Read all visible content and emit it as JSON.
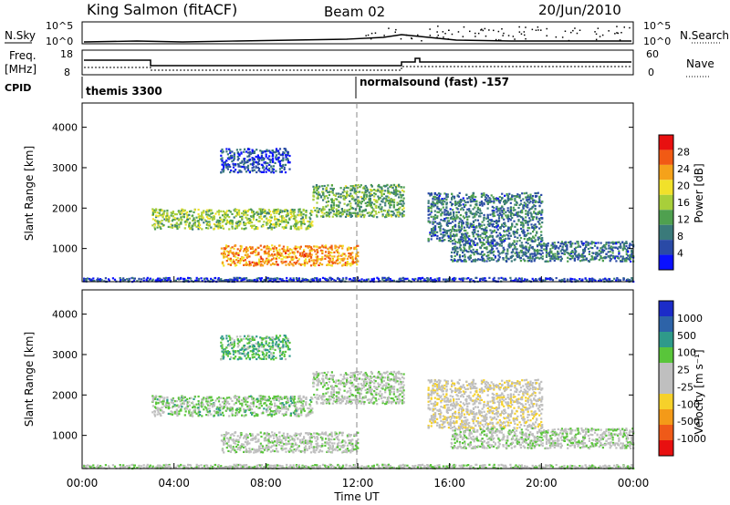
{
  "header": {
    "station": "King Salmon (fitACF)",
    "beam": "Beam 02",
    "date": "20/Jun/2010"
  },
  "noise_panel": {
    "left_label": "N.Sky",
    "right_label": "N.Search",
    "ticks": [
      "10^5",
      "10^0"
    ]
  },
  "freq_panel": {
    "left_label_1": "Freq.",
    "left_label_2": "[MHz]",
    "right_label": "Nave",
    "left_ticks": [
      "18",
      "8"
    ],
    "right_ticks": [
      "60",
      "0"
    ]
  },
  "cpid": {
    "label": "CPID",
    "mode_1": "themis 3300",
    "mode_2": "normalsound (fast) -157"
  },
  "power_panel": {
    "ylabel": "Slant Range [km]",
    "yticks": [
      "4000",
      "3000",
      "2000",
      "1000"
    ],
    "colorbar_label": "Power [dB]",
    "colorbar_ticks": [
      "28",
      "24",
      "20",
      "16",
      "12",
      "8",
      "4"
    ],
    "colors": [
      "#0a10ff",
      "#2a4aa6",
      "#3a7a7a",
      "#4fa04f",
      "#a8cf3a",
      "#f1e12a",
      "#f5a21a",
      "#f15a14",
      "#e81010"
    ]
  },
  "velocity_panel": {
    "ylabel": "Slant Range [km]",
    "yticks": [
      "4000",
      "3000",
      "2000",
      "1000"
    ],
    "colorbar_label": "Velocity [m s⁻¹]",
    "colorbar_ticks": [
      "1000",
      "500",
      "100",
      "25",
      "-25",
      "-100",
      "-500",
      "-1000"
    ],
    "colors": [
      "#1c2cc8",
      "#2d63a8",
      "#2f9a8a",
      "#59c53a",
      "#bfbfbf",
      "#bfbfbf",
      "#f6d12a",
      "#f49a18",
      "#ef5a18",
      "#e81010"
    ],
    "ground_scatter_color": "#bfbfbf"
  },
  "time_axis": {
    "label": "Time UT",
    "ticks": [
      "00:00",
      "04:00",
      "08:00",
      "12:00",
      "16:00",
      "20:00",
      "00:00"
    ]
  },
  "chart_data": {
    "type": "heatmap",
    "title": "King Salmon (fitACF) Beam 02 20/Jun/2010",
    "xlabel": "Time UT",
    "ylabel": "Slant Range [km]",
    "x_range_hours": [
      0,
      24
    ],
    "y_range_km": [
      180,
      4600
    ],
    "series": [
      {
        "name": "Power [dB]",
        "colorbar_range": [
          0,
          30
        ]
      },
      {
        "name": "Velocity [m s⁻¹]",
        "colorbar_range": [
          -1000,
          1000
        ]
      }
    ],
    "echo_regions": [
      {
        "t_start": 3.0,
        "t_end": 10.0,
        "range_km": [
          1500,
          2000
        ],
        "power_db": 14,
        "velocity": 30
      },
      {
        "t_start": 6.0,
        "t_end": 12.0,
        "range_km": [
          600,
          1100
        ],
        "power_db": 22,
        "velocity": -10
      },
      {
        "t_start": 10.0,
        "t_end": 14.0,
        "range_km": [
          1800,
          2600
        ],
        "power_db": 12,
        "velocity": 0
      },
      {
        "t_start": 15.0,
        "t_end": 20.0,
        "range_km": [
          1200,
          2400
        ],
        "power_db": 8,
        "velocity": -60
      },
      {
        "t_start": 16.0,
        "t_end": 24.0,
        "range_km": [
          700,
          1200
        ],
        "power_db": 8,
        "velocity": 0
      },
      {
        "t_start": 0.0,
        "t_end": 24.0,
        "range_km": [
          180,
          300
        ],
        "power_db": 4,
        "velocity": 0
      },
      {
        "t_start": 6.0,
        "t_end": 9.0,
        "range_km": [
          2900,
          3500
        ],
        "power_db": 5,
        "velocity": 80
      }
    ],
    "cpid_change_time_h": 12.0,
    "grid": false
  }
}
